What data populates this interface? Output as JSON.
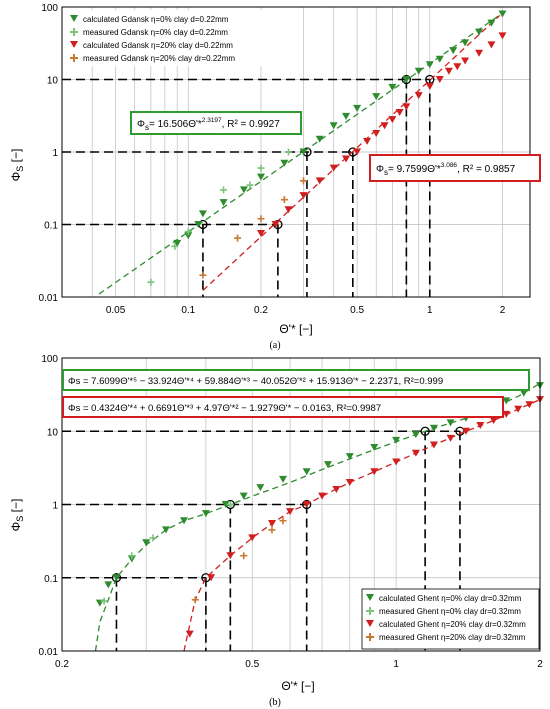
{
  "chart_data": [
    {
      "type": "scatter",
      "panel_label": "(a)",
      "xlabel": "Θ'* [−]",
      "ylabel": "Φ",
      "ylabel_sub": "S",
      "ylabel_unit": "[−]",
      "x_scale": "log",
      "y_scale": "log",
      "xlim": [
        0.03,
        2.6
      ],
      "ylim": [
        0.01,
        100
      ],
      "x_ticks": [
        {
          "v": 0.05,
          "label": "0.05"
        },
        {
          "v": 0.1,
          "label": "0.1"
        },
        {
          "v": 0.2,
          "label": "0.2"
        },
        {
          "v": 0.5,
          "label": "0.5"
        },
        {
          "v": 1,
          "label": "1"
        },
        {
          "v": 2,
          "label": "2"
        }
      ],
      "y_ticks": [
        {
          "v": 0.01,
          "label": "0.01"
        },
        {
          "v": 0.1,
          "label": "0.1"
        },
        {
          "v": 1,
          "label": "1"
        },
        {
          "v": 10,
          "label": "10"
        },
        {
          "v": 100,
          "label": "100"
        }
      ],
      "x_grid": [
        0.04,
        0.05,
        0.06,
        0.07,
        0.08,
        0.09,
        0.1,
        0.2,
        0.3,
        0.4,
        0.5,
        0.6,
        0.7,
        0.8,
        0.9,
        1,
        2
      ],
      "grid": true,
      "legend_position": "top-left",
      "series": [
        {
          "name": "calculated Gdansk η=0% clay d=0.22mm",
          "marker": "triangle",
          "color": "#2e8b2e",
          "points": [
            [
              0.09,
              0.055
            ],
            [
              0.1,
              0.07
            ],
            [
              0.11,
              0.1
            ],
            [
              0.115,
              0.14
            ],
            [
              0.14,
              0.2
            ],
            [
              0.17,
              0.3
            ],
            [
              0.2,
              0.45
            ],
            [
              0.25,
              0.7
            ],
            [
              0.3,
              1.0
            ],
            [
              0.35,
              1.5
            ],
            [
              0.4,
              2.3
            ],
            [
              0.45,
              3.1
            ],
            [
              0.5,
              4.0
            ],
            [
              0.6,
              5.8
            ],
            [
              0.7,
              7.8
            ],
            [
              0.8,
              10
            ],
            [
              0.9,
              13
            ],
            [
              1.0,
              16
            ],
            [
              1.1,
              19
            ],
            [
              1.25,
              25
            ],
            [
              1.4,
              32
            ],
            [
              1.6,
              45
            ],
            [
              1.8,
              60
            ],
            [
              2.0,
              80
            ]
          ]
        },
        {
          "name": "measured Gdansk η=0% clay d=0.22mm",
          "marker": "cross",
          "color": "#7cc47c",
          "points": [
            [
              0.07,
              0.016
            ],
            [
              0.088,
              0.05
            ],
            [
              0.1,
              0.08
            ],
            [
              0.14,
              0.3
            ],
            [
              0.18,
              0.35
            ],
            [
              0.2,
              0.6
            ],
            [
              0.26,
              1.0
            ]
          ]
        },
        {
          "name": "calculated Gdansk η=20% clay d=0.22mm",
          "marker": "triangle",
          "color": "#d21e1e",
          "points": [
            [
              0.2,
              0.075
            ],
            [
              0.23,
              0.1
            ],
            [
              0.26,
              0.16
            ],
            [
              0.3,
              0.25
            ],
            [
              0.35,
              0.4
            ],
            [
              0.4,
              0.6
            ],
            [
              0.45,
              0.8
            ],
            [
              0.5,
              1.0
            ],
            [
              0.55,
              1.4
            ],
            [
              0.6,
              1.8
            ],
            [
              0.65,
              2.3
            ],
            [
              0.7,
              2.8
            ],
            [
              0.75,
              3.5
            ],
            [
              0.8,
              4.2
            ],
            [
              0.9,
              6.0
            ],
            [
              1.0,
              8.0
            ],
            [
              1.1,
              10
            ],
            [
              1.2,
              13
            ],
            [
              1.3,
              15
            ],
            [
              1.4,
              18
            ],
            [
              1.6,
              23
            ],
            [
              1.8,
              30
            ],
            [
              2.0,
              40
            ]
          ]
        },
        {
          "name": "measured Gdansk η=20% clay dr=0.22mm",
          "marker": "cross",
          "color": "#c87832",
          "points": [
            [
              0.115,
              0.02
            ],
            [
              0.16,
              0.065
            ],
            [
              0.2,
              0.12
            ],
            [
              0.25,
              0.22
            ],
            [
              0.3,
              0.4
            ]
          ]
        }
      ],
      "fits": [
        {
          "color": "#2e8b2e",
          "a": 16.506,
          "b": 2.3197,
          "x_from": 0.04,
          "x_to": 2.0
        },
        {
          "color": "#d21e1e",
          "a": 9.7599,
          "b": 3.086,
          "x_from": 0.115,
          "x_to": 1.95
        }
      ],
      "equations": [
        {
          "prefix": "Φ",
          "sub": "s",
          "text": "= 16.506Θ'*",
          "sup": "2.3197",
          "suffix": ", R² = 0.9927",
          "border": "#2e9b2e"
        },
        {
          "prefix": "Φ",
          "sub": "s",
          "text": "= 9.7599Θ'*",
          "sup": "3.086",
          "suffix": ", R² = 0.9857",
          "border": "#d21e1e"
        }
      ],
      "reference_lines": [
        {
          "y": 10,
          "x": [
            0.8,
            1.0
          ]
        },
        {
          "y": 1,
          "x": [
            0.31,
            0.48
          ]
        },
        {
          "y": 0.1,
          "x": [
            0.115,
            0.235
          ]
        }
      ]
    },
    {
      "type": "scatter",
      "panel_label": "(b)",
      "xlabel": "Θ'* [−]",
      "ylabel": "Φ",
      "ylabel_sub": "S",
      "ylabel_unit": "[−]",
      "x_scale": "log",
      "y_scale": "log",
      "xlim": [
        0.2,
        2.0
      ],
      "ylim": [
        0.01,
        100
      ],
      "x_ticks": [
        {
          "v": 0.2,
          "label": "0.2"
        },
        {
          "v": 0.5,
          "label": "0.5"
        },
        {
          "v": 1,
          "label": "1"
        },
        {
          "v": 2,
          "label": "2"
        }
      ],
      "y_ticks": [
        {
          "v": 0.01,
          "label": "0.01"
        },
        {
          "v": 0.1,
          "label": "0.1"
        },
        {
          "v": 1,
          "label": "1"
        },
        {
          "v": 10,
          "label": "10"
        },
        {
          "v": 100,
          "label": "100"
        }
      ],
      "x_grid": [
        0.3,
        0.4,
        0.5,
        0.6,
        0.7,
        0.8,
        0.9,
        1
      ],
      "grid": true,
      "legend_position": "bottom-right",
      "series": [
        {
          "name": "calculated Ghent η=0% clay dr=0.32mm",
          "marker": "triangle",
          "color": "#2e8b2e",
          "points": [
            [
              0.24,
              0.045
            ],
            [
              0.25,
              0.08
            ],
            [
              0.26,
              0.1
            ],
            [
              0.28,
              0.18
            ],
            [
              0.3,
              0.3
            ],
            [
              0.33,
              0.45
            ],
            [
              0.36,
              0.6
            ],
            [
              0.4,
              0.75
            ],
            [
              0.44,
              1.0
            ],
            [
              0.48,
              1.3
            ],
            [
              0.52,
              1.7
            ],
            [
              0.58,
              2.2
            ],
            [
              0.65,
              2.8
            ],
            [
              0.72,
              3.5
            ],
            [
              0.8,
              4.5
            ],
            [
              0.9,
              6.0
            ],
            [
              1.0,
              7.5
            ],
            [
              1.1,
              9.0
            ],
            [
              1.2,
              11
            ],
            [
              1.3,
              13
            ],
            [
              1.4,
              15
            ],
            [
              1.5,
              18
            ],
            [
              1.6,
              22
            ],
            [
              1.7,
              26
            ],
            [
              1.85,
              33
            ],
            [
              2.0,
              42
            ]
          ]
        },
        {
          "name": "measured Ghent η=0% clay dr=0.32mm",
          "marker": "cross",
          "color": "#7cc47c",
          "points": [
            [
              0.245,
              0.048
            ],
            [
              0.28,
              0.2
            ],
            [
              0.31,
              0.35
            ],
            [
              0.45,
              1.0
            ]
          ]
        },
        {
          "name": "calculated Ghent η=20% clay dr=0.32mm",
          "marker": "triangle",
          "color": "#d21e1e",
          "points": [
            [
              0.37,
              0.017
            ],
            [
              0.41,
              0.1
            ],
            [
              0.45,
              0.2
            ],
            [
              0.5,
              0.35
            ],
            [
              0.55,
              0.55
            ],
            [
              0.6,
              0.8
            ],
            [
              0.65,
              1.0
            ],
            [
              0.7,
              1.3
            ],
            [
              0.75,
              1.6
            ],
            [
              0.8,
              2.0
            ],
            [
              0.9,
              2.8
            ],
            [
              1.0,
              3.8
            ],
            [
              1.1,
              5.0
            ],
            [
              1.2,
              6.5
            ],
            [
              1.3,
              8.0
            ],
            [
              1.4,
              10
            ],
            [
              1.5,
              12
            ],
            [
              1.6,
              14
            ],
            [
              1.7,
              17
            ],
            [
              1.8,
              20
            ],
            [
              1.9,
              23
            ],
            [
              2.0,
              27
            ]
          ]
        },
        {
          "name": "measured Ghent η=20% clay dr=0.32mm",
          "marker": "cross",
          "color": "#c87832",
          "points": [
            [
              0.38,
              0.05
            ],
            [
              0.48,
              0.2
            ],
            [
              0.55,
              0.45
            ],
            [
              0.58,
              0.6
            ]
          ]
        }
      ],
      "fits": [
        {
          "color": "#2e8b2e",
          "points": [
            [
              0.235,
              0.01
            ],
            [
              0.24,
              0.025
            ],
            [
              0.25,
              0.05
            ],
            [
              0.26,
              0.1
            ],
            [
              0.28,
              0.18
            ],
            [
              0.3,
              0.28
            ],
            [
              0.33,
              0.45
            ],
            [
              0.36,
              0.6
            ],
            [
              0.4,
              0.75
            ],
            [
              0.45,
              1.0
            ],
            [
              0.5,
              1.3
            ],
            [
              0.6,
              2.0
            ],
            [
              0.7,
              3.0
            ],
            [
              0.8,
              4.2
            ],
            [
              0.9,
              5.6
            ],
            [
              1.0,
              7.2
            ],
            [
              1.2,
              11
            ],
            [
              1.4,
              15
            ],
            [
              1.6,
              21
            ],
            [
              1.8,
              30
            ],
            [
              2.0,
              45
            ]
          ]
        },
        {
          "color": "#d21e1e",
          "points": [
            [
              0.36,
              0.01
            ],
            [
              0.38,
              0.05
            ],
            [
              0.4,
              0.1
            ],
            [
              0.45,
              0.2
            ],
            [
              0.5,
              0.35
            ],
            [
              0.55,
              0.55
            ],
            [
              0.6,
              0.8
            ],
            [
              0.65,
              1.0
            ],
            [
              0.7,
              1.3
            ],
            [
              0.8,
              2.0
            ],
            [
              0.9,
              2.8
            ],
            [
              1.0,
              3.8
            ],
            [
              1.2,
              6.5
            ],
            [
              1.4,
              10
            ],
            [
              1.6,
              14
            ],
            [
              1.8,
              20
            ],
            [
              2.0,
              27
            ]
          ]
        }
      ],
      "equations": [
        {
          "text": "Φs = 7.6099Θ'*⁵ − 33.924Θ'*⁴ + 59.884Θ'*³ − 40.052Θ'*² + 15.913Θ'* − 2.2371, R²=0.999",
          "border": "#2e9b2e"
        },
        {
          "text": "Φs = 0.4324Θ'*⁴ + 0.6691Θ'*³ + 4.97Θ'*² − 1.9279Θ'* − 0.0163, R²=0.9987",
          "border": "#d21e1e"
        }
      ],
      "reference_lines": [
        {
          "y": 10,
          "x": [
            1.15,
            1.36
          ]
        },
        {
          "y": 1,
          "x": [
            0.45,
            0.65
          ]
        },
        {
          "y": 0.1,
          "x": [
            0.26,
            0.4
          ]
        }
      ]
    }
  ]
}
